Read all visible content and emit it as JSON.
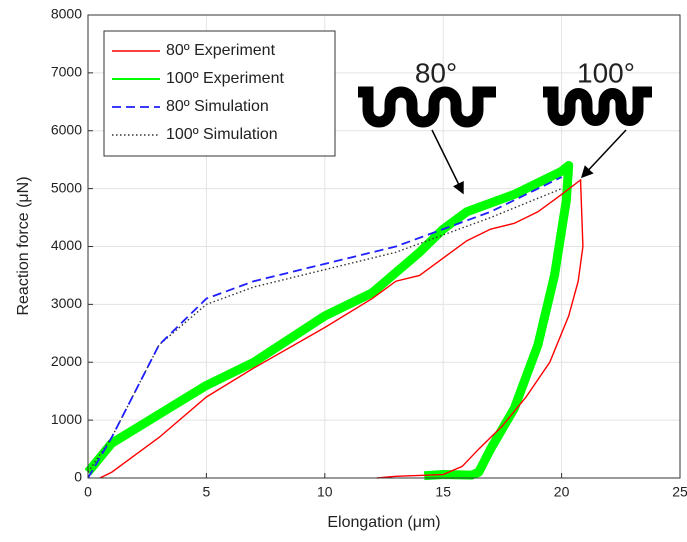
{
  "chart_data": {
    "type": "line",
    "xlabel": "Elongation (μm)",
    "ylabel": "Reaction force (μN)",
    "xlim": [
      0,
      25
    ],
    "xticks": [
      0,
      5,
      10,
      15,
      20,
      25
    ],
    "ylim": [
      0,
      8000
    ],
    "yticks": [
      0,
      1000,
      2000,
      3000,
      4000,
      5000,
      6000,
      7000,
      8000
    ],
    "grid": true,
    "legend": "upper left",
    "annotations": [
      "80°",
      "100°"
    ],
    "series": [
      {
        "name": "80º Experiment",
        "color": "#ff0000",
        "style": "solid",
        "x": [
          0.5,
          1,
          2,
          3,
          5,
          7,
          10,
          12,
          13,
          14,
          15,
          16,
          17,
          18,
          19,
          20,
          20.8,
          20.9,
          20.7,
          20.3,
          19.5,
          18.5,
          17.5,
          16.5,
          15.8,
          15,
          13,
          12.2
        ],
        "values": [
          0,
          100,
          400,
          700,
          1400,
          1900,
          2600,
          3100,
          3400,
          3500,
          3800,
          4100,
          4300,
          4400,
          4600,
          4900,
          5150,
          4000,
          3400,
          2800,
          2000,
          1400,
          900,
          500,
          200,
          60,
          30,
          0
        ]
      },
      {
        "name": "100º Experiment",
        "color": "#00ff00",
        "style": "thick",
        "x": [
          0,
          1,
          3,
          5,
          7,
          10,
          12,
          14,
          15,
          16,
          18,
          20,
          20.3,
          20.2,
          19.7,
          19,
          18,
          17,
          16.5,
          16.2,
          15,
          14.2
        ],
        "values": [
          100,
          600,
          1100,
          1600,
          2000,
          2800,
          3200,
          3900,
          4300,
          4600,
          4900,
          5300,
          5400,
          4800,
          3500,
          2300,
          1200,
          500,
          100,
          50,
          60,
          40
        ]
      },
      {
        "name": "80º Simulation",
        "color": "#1f1fff",
        "style": "dashed",
        "x": [
          0,
          1,
          2,
          3,
          5,
          7,
          10,
          13,
          15,
          17,
          20
        ],
        "values": [
          0,
          700,
          1500,
          2300,
          3100,
          3400,
          3700,
          4000,
          4300,
          4600,
          5200
        ]
      },
      {
        "name": "100º Simulation",
        "color": "#333333",
        "style": "dotted",
        "x": [
          0,
          1,
          2,
          3,
          5,
          7,
          10,
          13,
          15,
          17,
          20
        ],
        "values": [
          100,
          700,
          1500,
          2300,
          3000,
          3300,
          3600,
          3900,
          4200,
          4500,
          5000
        ]
      }
    ]
  }
}
